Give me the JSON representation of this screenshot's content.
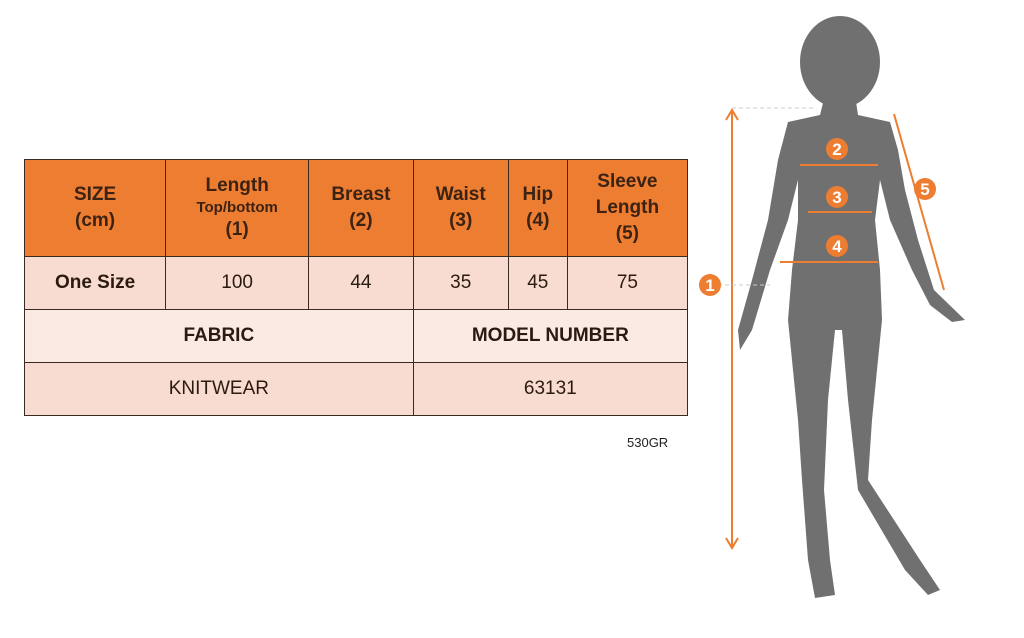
{
  "table": {
    "headers": [
      {
        "l1": "SIZE",
        "l2": "",
        "l3": "(cm)"
      },
      {
        "l1": "Length",
        "l2": "Top/bottom",
        "l3": "(1)"
      },
      {
        "l1": "Breast",
        "l2": "",
        "l3": "(2)"
      },
      {
        "l1": "Waist",
        "l2": "",
        "l3": "(3)"
      },
      {
        "l1": "Hip",
        "l2": "",
        "l3": "(4)"
      },
      {
        "l1": "Sleeve",
        "l2": "Length",
        "l3": "(5)"
      }
    ],
    "row": [
      "One Size",
      "100",
      "44",
      "35",
      "45",
      "75"
    ],
    "fabric_label": "FABRIC",
    "model_label": "MODEL NUMBER",
    "fabric_value": "KNITWEAR",
    "model_value": "63131"
  },
  "code": "530GR",
  "figure": {
    "markers": [
      "1",
      "2",
      "3",
      "4",
      "5"
    ],
    "accent": "#ED7D31",
    "silhouette": "#707070"
  }
}
